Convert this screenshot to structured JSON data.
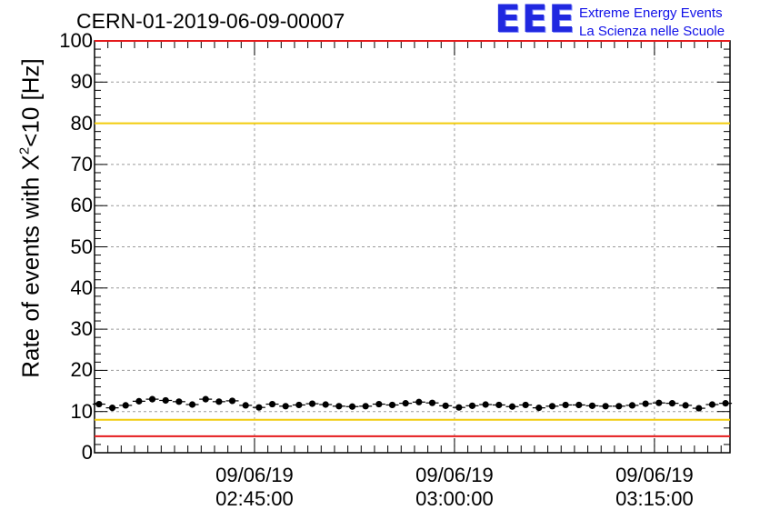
{
  "header": {
    "run_title": "CERN-01-2019-06-09-00007",
    "logo_letters": "EEE",
    "logo_line1": "Extreme Energy Events",
    "logo_line2": "La Scienza nelle Scuole"
  },
  "colors": {
    "red_line": "#e41a1c",
    "yellow_line": "#f2cc0c",
    "points": "#000000",
    "grid": "#9a9a9a",
    "logo_blue": "#2028e0"
  },
  "chart_data": {
    "type": "scatter",
    "title": "CERN-01-2019-06-09-00007",
    "ylabel": {
      "prefix": "Rate of events with X",
      "sup": "2",
      "suffix": "<10 [Hz]"
    },
    "xlabel": "",
    "ylim": [
      0,
      100
    ],
    "yticks": [
      0,
      10,
      20,
      30,
      40,
      50,
      60,
      70,
      80,
      90,
      100
    ],
    "xlim_minutes": [
      "02:33:00",
      "03:20:40"
    ],
    "xticks": [
      {
        "date": "09/06/19",
        "time": "02:45:00"
      },
      {
        "date": "09/06/19",
        "time": "03:00:00"
      },
      {
        "date": "09/06/19",
        "time": "03:15:00"
      }
    ],
    "grid": true,
    "reference_lines": [
      {
        "y": 100,
        "color": "red"
      },
      {
        "y": 80,
        "color": "yellow"
      },
      {
        "y": 8,
        "color": "yellow"
      },
      {
        "y": 4,
        "color": "red"
      }
    ],
    "series": [
      {
        "x": [
          "02:33:20",
          "02:34:20",
          "02:35:20",
          "02:36:20",
          "02:37:20",
          "02:38:20",
          "02:39:20",
          "02:40:20",
          "02:41:20",
          "02:42:20",
          "02:43:20",
          "02:44:20",
          "02:45:20",
          "02:46:20",
          "02:47:20",
          "02:48:20",
          "02:49:20",
          "02:50:20",
          "02:51:20",
          "02:52:20",
          "02:53:20",
          "02:54:20",
          "02:55:20",
          "02:56:20",
          "02:57:20",
          "02:58:20",
          "02:59:20",
          "03:00:20",
          "03:01:20",
          "03:02:20",
          "03:03:20",
          "03:04:20",
          "03:05:20",
          "03:06:20",
          "03:07:20",
          "03:08:20",
          "03:09:20",
          "03:10:20",
          "03:11:20",
          "03:12:20",
          "03:13:20",
          "03:14:20",
          "03:15:20",
          "03:16:20",
          "03:17:20",
          "03:18:20",
          "03:19:20",
          "03:20:20"
        ],
        "y": [
          11.8,
          10.9,
          11.5,
          12.5,
          13.0,
          12.7,
          12.4,
          11.7,
          13.0,
          12.4,
          12.6,
          11.5,
          11.0,
          11.8,
          11.3,
          11.6,
          11.9,
          11.7,
          11.3,
          11.2,
          11.3,
          11.8,
          11.6,
          12.0,
          12.3,
          12.1,
          11.4,
          11.0,
          11.4,
          11.7,
          11.6,
          11.2,
          11.6,
          10.9,
          11.3,
          11.6,
          11.6,
          11.4,
          11.3,
          11.3,
          11.5,
          11.9,
          12.1,
          12.0,
          11.5,
          10.8,
          11.7,
          12.0
        ],
        "yerr": 0.6
      }
    ]
  },
  "y_tick_labels": [
    "0",
    "10",
    "20",
    "30",
    "40",
    "50",
    "60",
    "70",
    "80",
    "90",
    "100"
  ]
}
